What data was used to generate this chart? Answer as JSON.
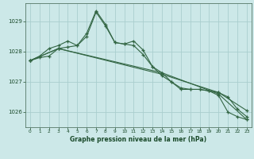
{
  "background_color": "#cce8e8",
  "plot_bg_color": "#cce8e8",
  "grid_color": "#aacece",
  "line_color": "#336644",
  "marker_color": "#336644",
  "xlabel": "Graphe pression niveau de la mer (hPa)",
  "xlabel_color": "#1a4a2a",
  "ylim": [
    1025.5,
    1029.6
  ],
  "xlim": [
    -0.5,
    23.5
  ],
  "yticks": [
    1026,
    1027,
    1028,
    1029
  ],
  "xticks": [
    0,
    1,
    2,
    3,
    4,
    5,
    6,
    7,
    8,
    9,
    10,
    11,
    12,
    13,
    14,
    15,
    16,
    17,
    18,
    19,
    20,
    21,
    22,
    23
  ],
  "series": [
    [
      1027.7,
      1027.8,
      1027.85,
      1028.1,
      1028.15,
      1028.2,
      1028.5,
      1029.3,
      1028.85,
      1028.3,
      1028.25,
      1028.2,
      1027.9,
      1027.5,
      1027.2,
      1027.0,
      1026.8,
      1026.75,
      1026.75,
      1026.7,
      1026.65,
      1026.5,
      1026.1,
      1025.85
    ],
    [
      1027.7,
      1027.85,
      1028.1,
      1028.2,
      1028.35,
      1028.2,
      1028.6,
      1029.35,
      1028.9,
      1028.3,
      1028.25,
      1028.35,
      1028.05,
      1027.5,
      1027.3,
      1027.0,
      1026.75,
      1026.75,
      1026.75,
      1026.7,
      1026.55,
      1026.0,
      1025.85,
      1025.75
    ],
    [
      1027.7,
      null,
      null,
      1028.1,
      null,
      null,
      null,
      null,
      null,
      null,
      null,
      null,
      null,
      null,
      1027.3,
      null,
      null,
      null,
      null,
      null,
      1026.6,
      null,
      null,
      1025.75
    ],
    [
      1027.7,
      null,
      null,
      1028.1,
      null,
      null,
      null,
      null,
      null,
      null,
      null,
      null,
      null,
      null,
      1027.25,
      null,
      null,
      null,
      null,
      null,
      1026.65,
      null,
      null,
      1026.05
    ]
  ]
}
